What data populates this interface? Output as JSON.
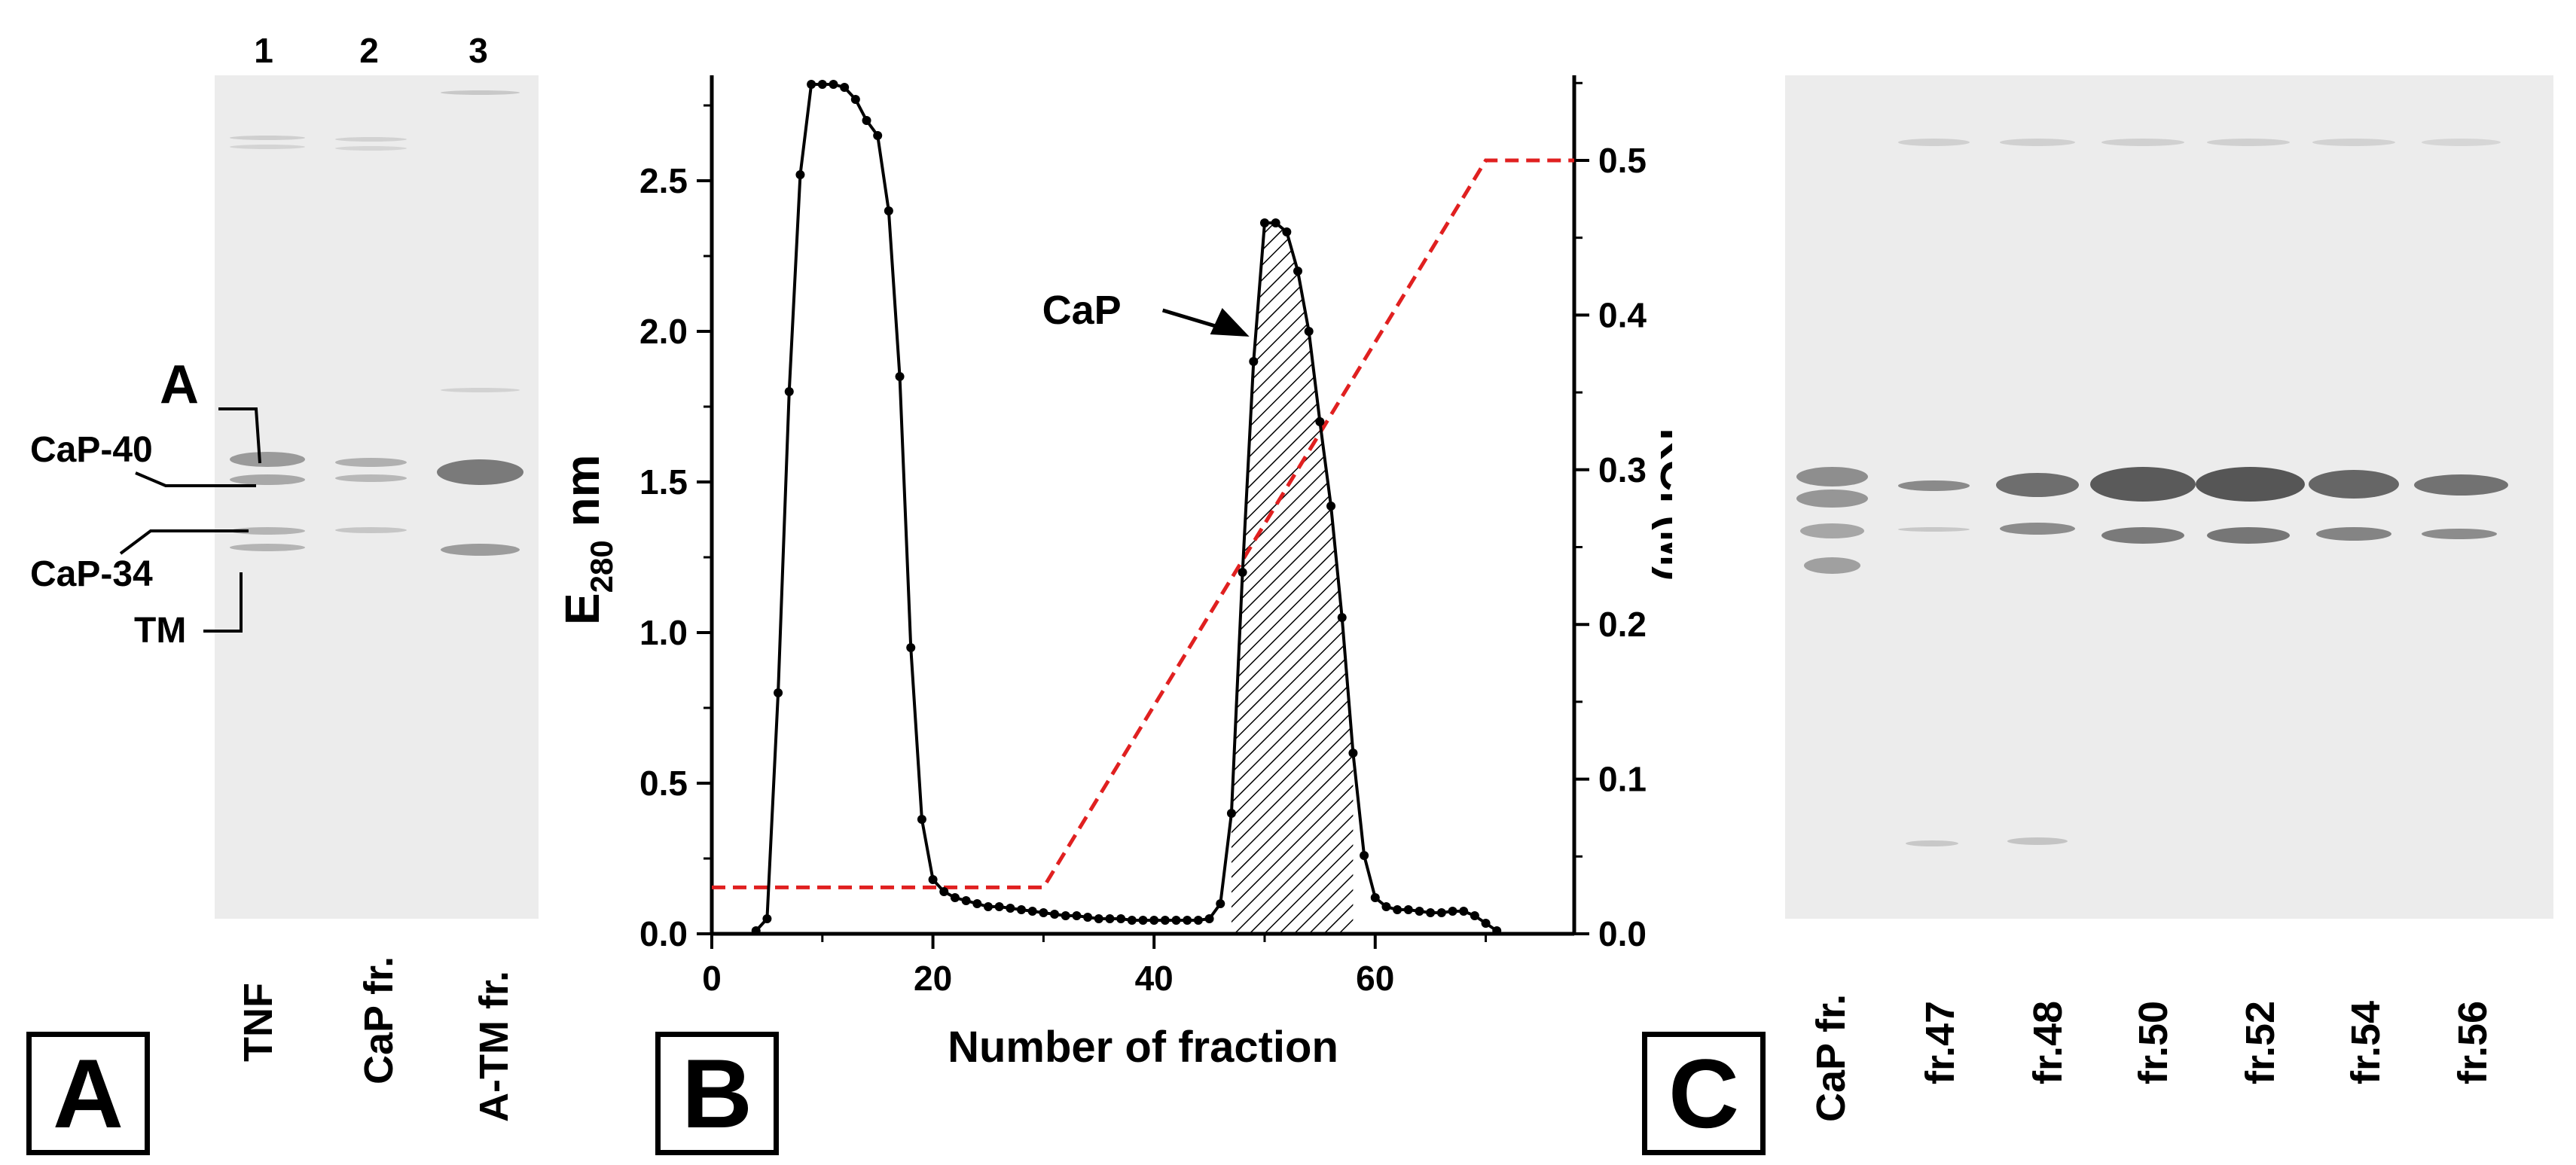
{
  "panel_a": {
    "letter": "A",
    "lane_numbers": [
      "1",
      "2",
      "3"
    ],
    "lane_labels": [
      "TNF",
      "CaP fr.",
      "A-TM fr."
    ],
    "band_markers": [
      "A",
      "CaP-40",
      "CaP-34",
      "TM"
    ]
  },
  "panel_b": {
    "letter": "B"
  },
  "panel_c": {
    "letter": "C",
    "lane_labels": [
      "CaP fr.",
      "fr.47",
      "fr.48",
      "fr.50",
      "fr.52",
      "fr.54",
      "fr.56"
    ]
  },
  "chart_data": {
    "type": "line",
    "xlabel": "Number of fraction",
    "ylabel_main": "E",
    "ylabel_sub": "280",
    "ylabel_unit": " nm",
    "y2label": "KCl (M)",
    "xlim": [
      0,
      78
    ],
    "ylim": [
      0,
      2.85
    ],
    "y2lim": [
      0,
      0.555
    ],
    "xticks": [
      0,
      20,
      40,
      60
    ],
    "yticks": [
      0.0,
      0.5,
      1.0,
      1.5,
      2.0,
      2.5
    ],
    "y2ticks": [
      0.0,
      0.1,
      0.2,
      0.3,
      0.4,
      0.5
    ],
    "annotation": "CaP",
    "annotation_point": [
      51,
      2.05
    ],
    "shaded_range": [
      47,
      58
    ],
    "series": [
      {
        "name": "E280",
        "style": "solid-black-markers",
        "x": [
          4,
          5,
          6,
          7,
          8,
          9,
          10,
          11,
          12,
          13,
          14,
          15,
          16,
          17,
          18,
          19,
          20,
          21,
          22,
          23,
          24,
          25,
          26,
          27,
          28,
          29,
          30,
          31,
          32,
          33,
          34,
          35,
          36,
          37,
          38,
          39,
          40,
          41,
          42,
          43,
          44,
          45,
          46,
          47,
          48,
          49,
          50,
          51,
          52,
          53,
          54,
          55,
          56,
          57,
          58,
          59,
          60,
          61,
          62,
          63,
          64,
          65,
          66,
          67,
          68,
          69,
          70,
          71
        ],
        "y": [
          0.01,
          0.05,
          0.8,
          1.8,
          2.52,
          2.82,
          2.82,
          2.82,
          2.81,
          2.77,
          2.7,
          2.65,
          2.4,
          1.85,
          0.95,
          0.38,
          0.18,
          0.14,
          0.12,
          0.11,
          0.1,
          0.09,
          0.09,
          0.085,
          0.08,
          0.075,
          0.07,
          0.065,
          0.06,
          0.06,
          0.055,
          0.05,
          0.05,
          0.05,
          0.045,
          0.045,
          0.045,
          0.045,
          0.045,
          0.045,
          0.045,
          0.05,
          0.1,
          0.4,
          1.2,
          1.9,
          2.36,
          2.36,
          2.33,
          2.2,
          2.0,
          1.7,
          1.42,
          1.05,
          0.6,
          0.26,
          0.12,
          0.09,
          0.08,
          0.08,
          0.075,
          0.07,
          0.07,
          0.075,
          0.075,
          0.06,
          0.035,
          0.01
        ]
      },
      {
        "name": "KCl",
        "style": "dashed-red",
        "axis": "right",
        "x": [
          0,
          30,
          70,
          78
        ],
        "y": [
          0.03,
          0.03,
          0.5,
          0.5
        ]
      }
    ]
  },
  "colors": {
    "kcl_line": "#e02020",
    "data_line": "#000000",
    "gel_background": "#ececec"
  }
}
